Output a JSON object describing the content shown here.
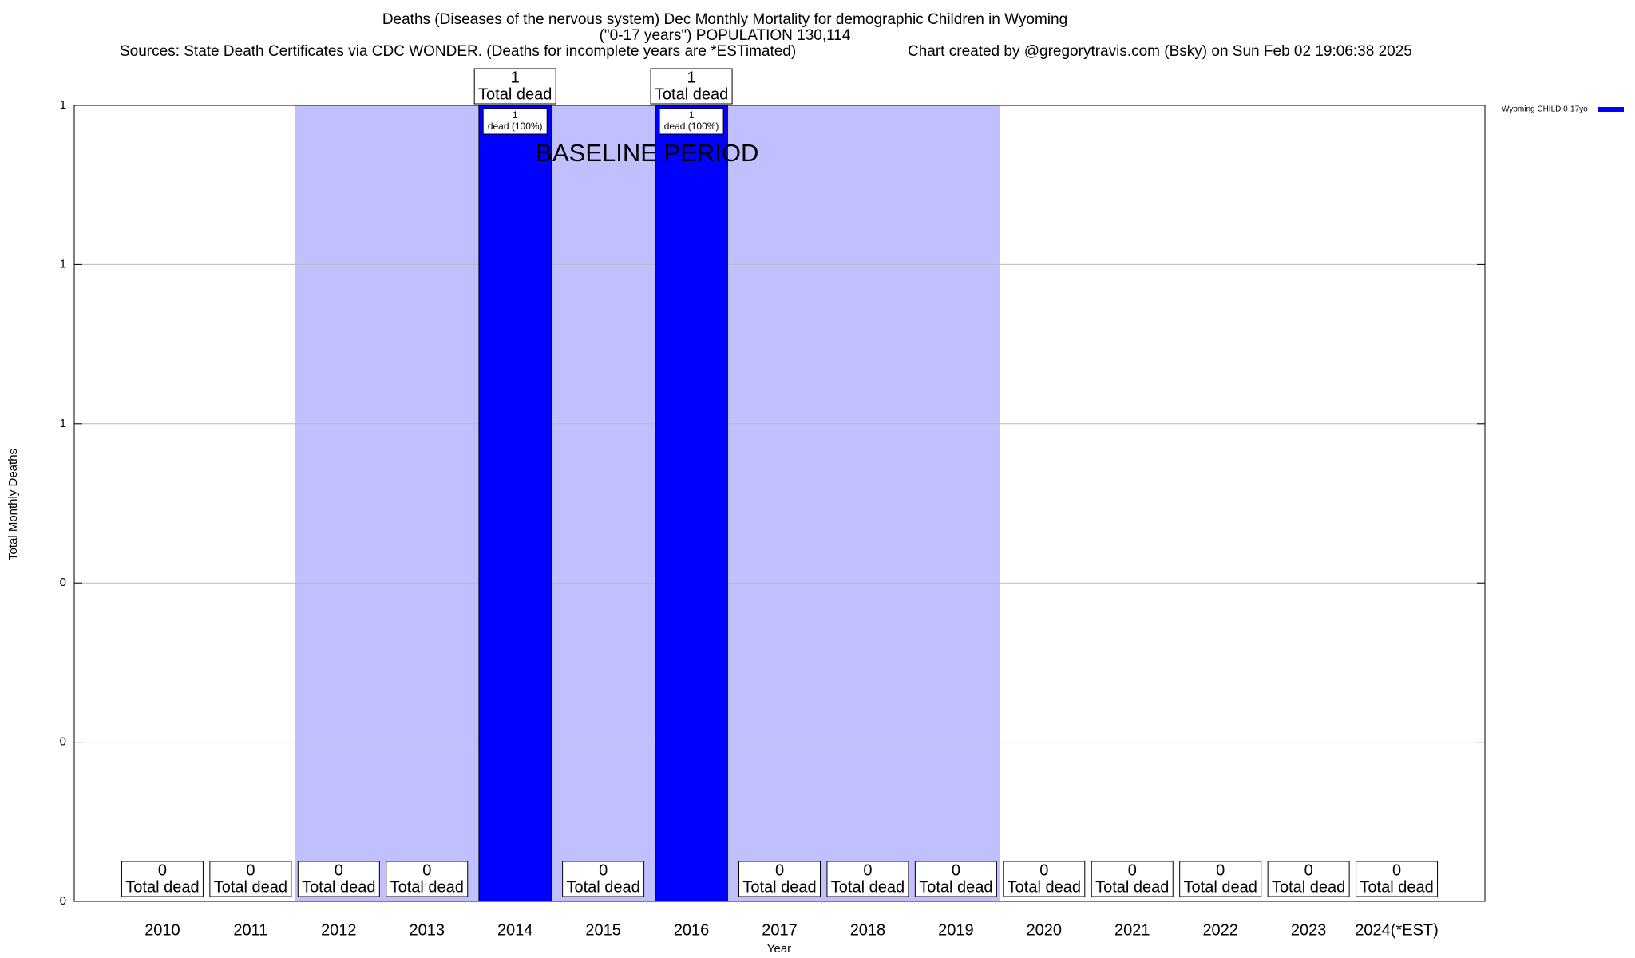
{
  "chart_data": {
    "type": "bar",
    "title": "Deaths (Diseases of the nervous system) Dec Monthly Mortality for demographic Children in Wyoming",
    "subtitle": "(\"0-17 years\") POPULATION 130,114",
    "sources": "Sources: State Death Certificates via CDC WONDER. (Deaths for incomplete years are *ESTimated)",
    "credit": "Chart created by @gregorytravis.com (Bsky) on Sun Feb 02 19:06:38 2025",
    "x_label": "Year",
    "y_label": "Total Monthly Deaths",
    "categories": [
      "2010",
      "2011",
      "2012",
      "2013",
      "2014",
      "2015",
      "2016",
      "2017",
      "2018",
      "2019",
      "2020",
      "2021",
      "2022",
      "2023",
      "2024(*EST)"
    ],
    "series": [
      {
        "name": "Wyoming CHILD 0-17yo",
        "color": "#0000ff",
        "values": [
          0,
          0,
          0,
          0,
          1,
          0,
          1,
          0,
          0,
          0,
          0,
          0,
          0,
          0,
          0
        ]
      }
    ],
    "value_label_text": "Total dead",
    "inner_label_text": "dead (100%)",
    "baseline_period": {
      "label": "BASELINE PERIOD",
      "start": "2012",
      "end": "2019",
      "color": "#c0c0ff"
    },
    "ylim": [
      0,
      1
    ],
    "yticks": [
      {
        "value": 0,
        "label": "0"
      },
      {
        "value": 0.2,
        "label": "0"
      },
      {
        "value": 0.4,
        "label": "0"
      },
      {
        "value": 0.6,
        "label": "1"
      },
      {
        "value": 0.8,
        "label": "1"
      },
      {
        "value": 1,
        "label": "1"
      }
    ],
    "grid": true,
    "legend": "top-right"
  }
}
